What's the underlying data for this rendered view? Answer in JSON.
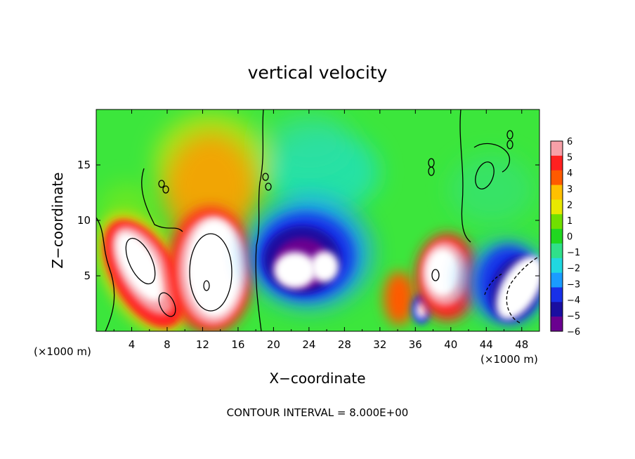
{
  "chart_data": {
    "type": "heatmap",
    "title": "vertical velocity",
    "xlabel": "X−coordinate",
    "ylabel": "Z−coordinate",
    "x_unit_left": "(×1000 m)",
    "x_unit_right": "(×1000 m)",
    "footer": "CONTOUR INTERVAL = 8.000E+00",
    "xlim": [
      0,
      50
    ],
    "ylim": [
      0,
      20
    ],
    "x_ticks": [
      4,
      8,
      12,
      16,
      20,
      24,
      28,
      32,
      36,
      40,
      44,
      48
    ],
    "x_tick_labels": [
      "4",
      "8",
      "12",
      "16",
      "20",
      "24",
      "28",
      "32",
      "36",
      "40",
      "44",
      "48"
    ],
    "y_ticks": [
      5,
      10,
      15
    ],
    "y_tick_labels": [
      "5",
      "10",
      "15"
    ],
    "colorbar": {
      "min": -6,
      "max": 6,
      "tick_values": [
        6,
        5,
        4,
        3,
        2,
        1,
        0,
        -1,
        -2,
        -3,
        -4,
        -5,
        -6
      ],
      "tick_labels": [
        "6",
        "5",
        "4",
        "3",
        "2",
        "1",
        "0",
        "−1",
        "−2",
        "−3",
        "−4",
        "−5",
        "−6"
      ],
      "colors": [
        "#f7a0a8",
        "#ff2020",
        "#ff5a00",
        "#ffc000",
        "#e8e800",
        "#70e000",
        "#20d820",
        "#30e08a",
        "#20d8e0",
        "#1a9cff",
        "#1830e8",
        "#1a0ea0",
        "#6a0090"
      ]
    },
    "features": [
      {
        "kind": "updraft",
        "x": 6.0,
        "z": 5.5,
        "peak": 12
      },
      {
        "kind": "updraft",
        "x": 13.0,
        "z": 6.0,
        "peak": 14
      },
      {
        "kind": "updraft",
        "x": 13.5,
        "z": 12.0,
        "peak": 3
      },
      {
        "kind": "downdraft",
        "x": 23.0,
        "z": 6.0,
        "peak": -12
      },
      {
        "kind": "updraft",
        "x": 39.0,
        "z": 5.0,
        "peak": 10
      },
      {
        "kind": "downdraft",
        "x": 47.5,
        "z": 4.0,
        "peak": -12
      }
    ]
  }
}
